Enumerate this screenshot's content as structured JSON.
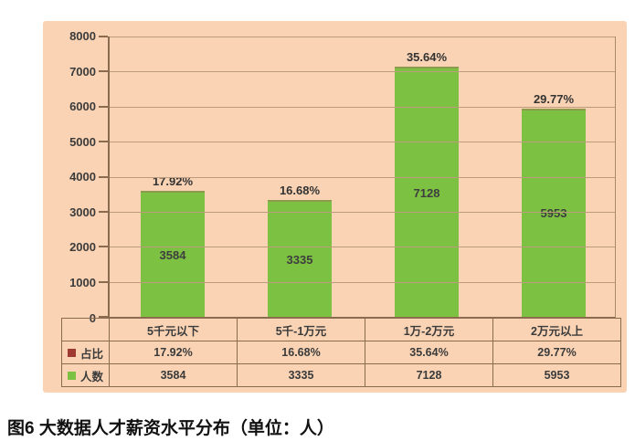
{
  "caption": "图6 大数据人才薪资水平分布（单位：人）",
  "colors": {
    "panel_bg": "#f9d3b4",
    "grid": "#bd9c7e",
    "axis": "#8a6b4e",
    "bar": "#7dc142",
    "bar_top": "#8e9a4d",
    "ratio": "#9e3a32",
    "text": "#3b3b3b"
  },
  "chart_data": {
    "type": "bar",
    "title": "",
    "xlabel": "",
    "ylabel": "",
    "categories": [
      "5千元以下",
      "5千-1万元",
      "1万-2万元",
      "2万元以上"
    ],
    "series": [
      {
        "name": "占比",
        "color": "#9e3a32",
        "values": [
          "17.92%",
          "16.68%",
          "35.64%",
          "29.77%"
        ]
      },
      {
        "name": "人数",
        "color": "#7dc142",
        "values": [
          3584,
          3335,
          7128,
          5953
        ]
      }
    ],
    "ylim": [
      0,
      8000
    ],
    "ytick_interval": 1000,
    "yticks": [
      "8000",
      "7000",
      "6000",
      "5000",
      "4000",
      "3000",
      "2000",
      "1000",
      "0"
    ],
    "grid": true,
    "legend_position": "table-left",
    "bar_labels_inside": [
      3584,
      3335,
      7128,
      5953
    ],
    "bar_labels_above": [
      "17.92%",
      "16.68%",
      "35.64%",
      "29.77%"
    ]
  }
}
